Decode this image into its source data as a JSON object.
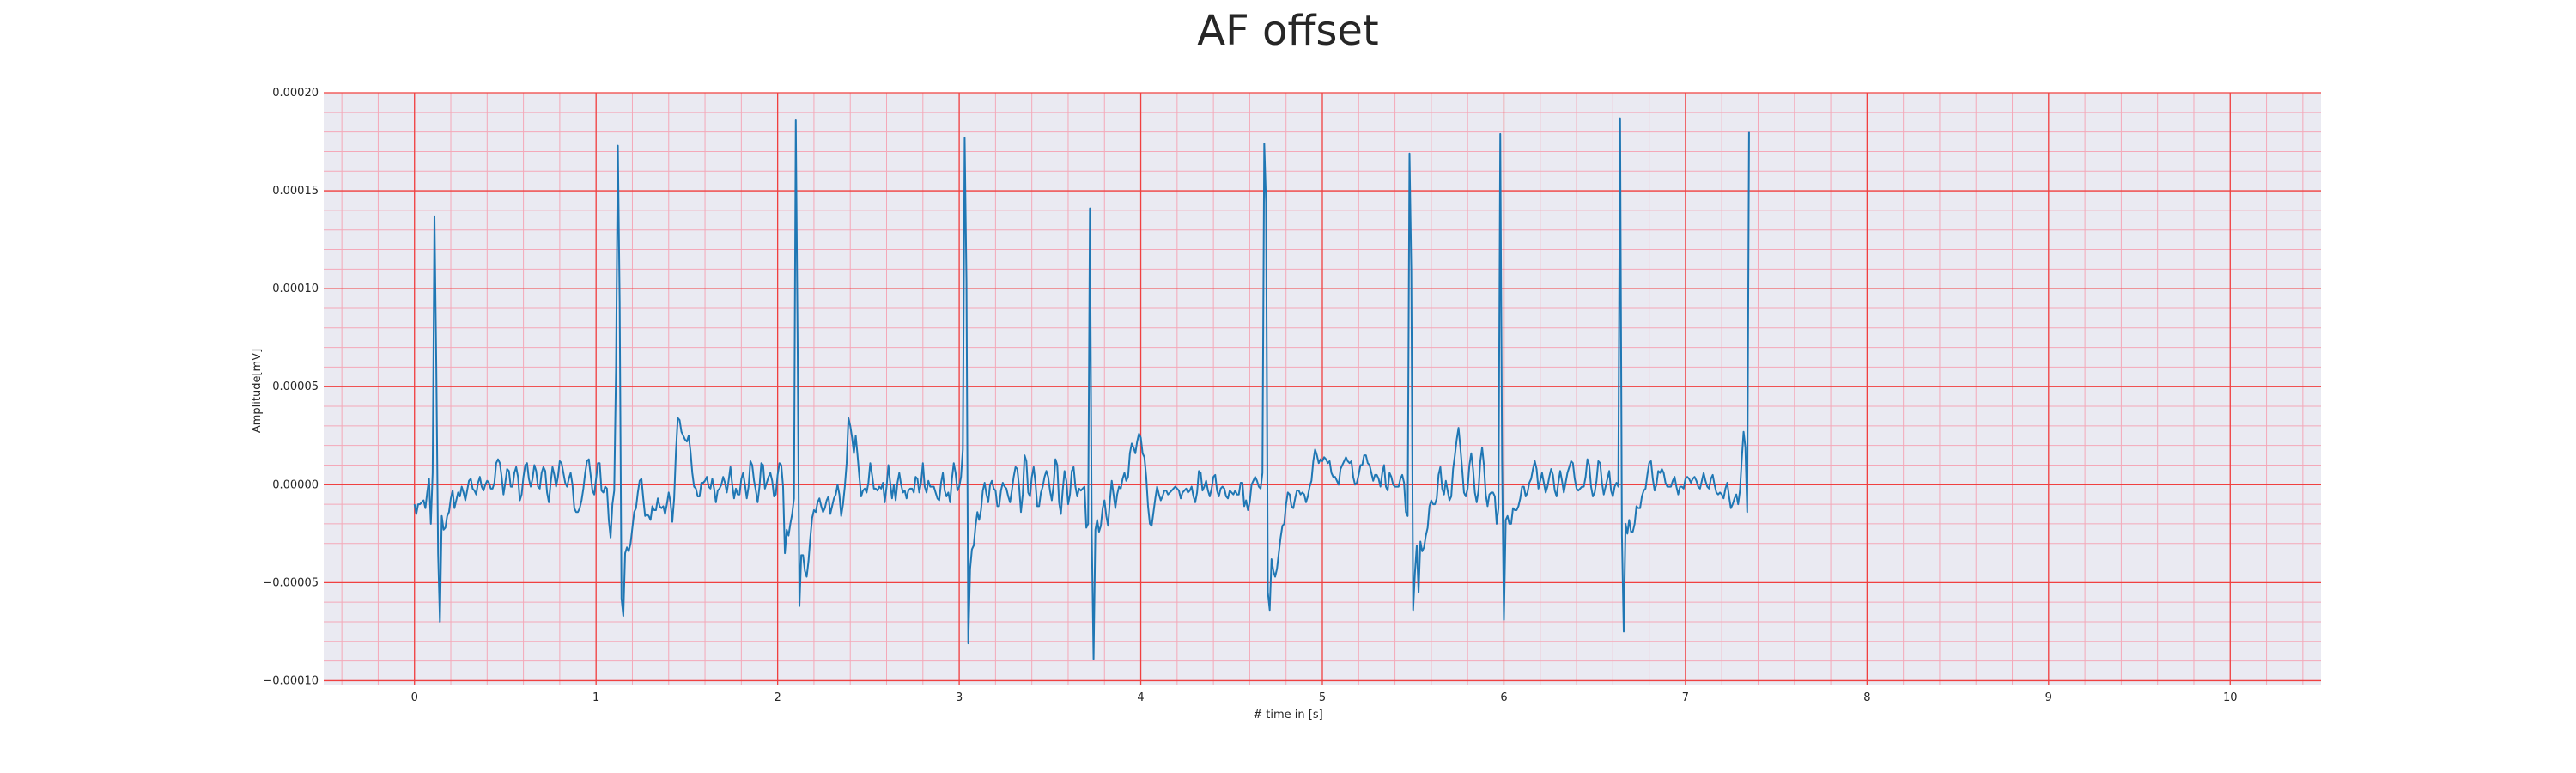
{
  "chart_data": {
    "type": "line",
    "title": "AF offset",
    "xlabel": "# time in [s]",
    "ylabel": "Amplitude[mV]",
    "xlim": [
      -0.5,
      10.5
    ],
    "ylim": [
      -0.000102,
      0.0002
    ],
    "x_ticks": [
      0,
      1,
      2,
      3,
      4,
      5,
      6,
      7,
      8,
      9,
      10
    ],
    "x_tick_labels": [
      "0",
      "1",
      "2",
      "3",
      "4",
      "5",
      "6",
      "7",
      "8",
      "9",
      "10"
    ],
    "y_ticks": [
      -0.0001,
      -5e-05,
      0,
      5e-05,
      0.0001,
      0.00015,
      0.0002
    ],
    "y_tick_labels": [
      "−0.00010",
      "−0.00005",
      "0.00000",
      "0.00005",
      "0.00010",
      "0.00015",
      "0.00020"
    ],
    "grid": true,
    "minor_grid": true,
    "colors": {
      "line": "#1f77b4",
      "plot_background": "#eaeaf2",
      "major_grid": "#f04040",
      "minor_grid": "#f4a8b8"
    },
    "series": [
      {
        "x_start": 0,
        "x_step": 0.01,
        "values": [
          -1e-05,
          -1.5e-05,
          -1e-05,
          -1e-05,
          -9e-06,
          -8e-06,
          -1.2e-05,
          -4e-06,
          3e-06,
          -2e-05,
          6e-06,
          0.000137,
          6.1e-05,
          -3.5e-05,
          -7e-05,
          -1.6e-05,
          -2.3e-05,
          -2.2e-05,
          -1.6e-05,
          -1.4e-05,
          -7e-06,
          -3e-06,
          -1.2e-05,
          -8e-06,
          -4e-06,
          -6e-06,
          -1e-06,
          -4e-06,
          -8e-06,
          -3e-06,
          2e-06,
          3e-06,
          -2e-06,
          -3e-06,
          -5e-06,
          1e-06,
          4e-06,
          -1e-06,
          -3e-06,
          0.0,
          2e-06,
          1e-06,
          -2e-06,
          -2e-06,
          1e-06,
          1.1e-05,
          1.3e-05,
          1.1e-05,
          4e-06,
          -5e-06,
          1e-06,
          8e-06,
          7e-06,
          -1e-06,
          -1e-06,
          6e-06,
          9e-06,
          4e-06,
          -8e-06,
          -5e-06,
          4e-06,
          1e-05,
          1.1e-05,
          3e-06,
          -1e-06,
          3e-06,
          1e-05,
          7e-06,
          -1e-06,
          -2e-06,
          6e-06,
          9e-06,
          7e-06,
          -4e-06,
          -9e-06,
          1e-06,
          9e-06,
          5e-06,
          -1e-06,
          4e-06,
          1.2e-05,
          1.1e-05,
          6e-06,
          1e-06,
          -1e-06,
          3e-06,
          6e-06,
          0.0,
          -1.2e-05,
          -1.4e-05,
          -1.4e-05,
          -1.2e-05,
          -8e-06,
          -2e-06,
          6e-06,
          1.2e-05,
          1.3e-05,
          5e-06,
          -3e-06,
          -5e-06,
          3e-06,
          1.1e-05,
          1.1e-05,
          -3e-06,
          -4e-06,
          -1e-06,
          -2e-06,
          -1.8e-05,
          -2.7e-05,
          -1e-05,
          -3e-06,
          5.9e-05,
          0.000173,
          9.3e-05,
          -5.8e-05,
          -6.7e-05,
          -3.5e-05,
          -3.2e-05,
          -3.4e-05,
          -3e-05,
          -2.2e-05,
          -1.4e-05,
          -1.2e-05,
          -4e-06,
          2e-06,
          3e-06,
          -7e-06,
          -1.6e-05,
          -1.5e-05,
          -1.6e-05,
          -1.8e-05,
          -1.1e-05,
          -1.3e-05,
          -1.3e-05,
          -7e-06,
          -1.1e-05,
          -1.2e-05,
          -1.1e-05,
          -1.5e-05,
          -1e-05,
          -4e-06,
          -9e-06,
          -1.9e-05,
          -7e-06,
          1.7e-05,
          3.4e-05,
          3.3e-05,
          2.7e-05,
          2.5e-05,
          2.3e-05,
          2.2e-05,
          2.5e-05,
          1.7e-05,
          6e-06,
          -1e-06,
          -2e-06,
          -6e-06,
          -6e-06,
          1e-06,
          1e-06,
          2e-06,
          4e-06,
          -1e-06,
          -2e-06,
          3e-06,
          -2e-06,
          -9e-06,
          -3e-06,
          -2e-06,
          0.0,
          4e-06,
          1e-06,
          -4e-06,
          2e-06,
          9e-06,
          0.0,
          -7e-06,
          -2e-06,
          -5e-06,
          -5e-06,
          3e-06,
          6e-06,
          0.0,
          -7e-06,
          -1e-06,
          1.2e-05,
          1e-05,
          2e-06,
          -3e-06,
          -9e-06,
          -1e-06,
          1.1e-05,
          1e-05,
          -2e-06,
          1e-06,
          4e-06,
          6e-06,
          2e-06,
          -6e-06,
          -5e-06,
          5e-06,
          1.1e-05,
          1e-05,
          -1e-06,
          -3.5e-05,
          -2.3e-05,
          -2.6e-05,
          -2e-05,
          -1.5e-05,
          -7e-06,
          0.000186,
          7.4e-05,
          -6.2e-05,
          -3.6e-05,
          -3.6e-05,
          -4.4e-05,
          -4.7e-05,
          -3.9e-05,
          -2.7e-05,
          -1.7e-05,
          -1.3e-05,
          -1.4e-05,
          -9e-06,
          -7e-06,
          -1.1e-05,
          -1.4e-05,
          -1.2e-05,
          -8e-06,
          -6e-06,
          -1.5e-05,
          -1.1e-05,
          -7e-06,
          -5e-06,
          0.0,
          -5e-06,
          -1.6e-05,
          -1e-05,
          -1e-06,
          1.1e-05,
          3.4e-05,
          3e-05,
          2.4e-05,
          1.6e-05,
          2.5e-05,
          1.5e-05,
          4e-06,
          -6e-06,
          -3e-06,
          -2e-06,
          -4e-06,
          1e-06,
          1.1e-05,
          5e-06,
          -2e-06,
          -2e-06,
          -3e-06,
          -1e-06,
          -2e-06,
          1e-06,
          -9e-06,
          -1e-06,
          1e-05,
          1e-06,
          -7e-06,
          0.0,
          -8e-06,
          1e-06,
          6e-06,
          0.0,
          -4e-06,
          -3e-06,
          -7e-06,
          -3e-06,
          -2e-06,
          -2e-06,
          -4e-06,
          4e-06,
          3e-06,
          -4e-06,
          1e-06,
          1.1e-05,
          -1e-06,
          -4e-06,
          2e-06,
          -1e-06,
          -1e-06,
          -1e-06,
          -4e-06,
          -7e-06,
          -8e-06,
          1e-06,
          6e-06,
          -3e-06,
          -6e-06,
          -4e-06,
          -9e-06,
          3e-06,
          1.1e-05,
          6e-06,
          -3e-06,
          -1e-06,
          4e-06,
          1.8e-05,
          0.000177,
          0.000104,
          -8.1e-05,
          -4.3e-05,
          -3.3e-05,
          -3.1e-05,
          -2.1e-05,
          -1.4e-05,
          -1.8e-05,
          -1.3e-05,
          -3e-06,
          1e-06,
          -5e-06,
          -9e-06,
          0.0,
          2e-06,
          -2e-06,
          -3e-06,
          -1.1e-05,
          -1.1e-05,
          -3e-06,
          1e-06,
          -1e-06,
          -2e-06,
          -6e-06,
          -9e-06,
          -3e-06,
          4e-06,
          9e-06,
          8e-06,
          -1e-06,
          -1.4e-05,
          -5e-06,
          1.5e-05,
          1.2e-05,
          -4e-06,
          -6e-06,
          4e-06,
          9e-06,
          1e-06,
          -1.1e-05,
          -1.1e-05,
          -4e-06,
          -1e-06,
          4e-06,
          7e-06,
          4e-06,
          -3e-06,
          -8e-06,
          0.0,
          1.3e-05,
          1e-05,
          -9e-06,
          -1.5e-05,
          -3e-06,
          7e-06,
          2e-06,
          -1e-05,
          -5e-06,
          7e-06,
          9e-06,
          -1e-06,
          -6e-06,
          -2e-06,
          -3e-06,
          -2e-06,
          -1e-06,
          -2.2e-05,
          -2e-05,
          0.000141,
          -2.5e-05,
          -8.9e-05,
          -2.3e-05,
          -1.8e-05,
          -2.4e-05,
          -2.1e-05,
          -1.2e-05,
          -8e-06,
          -1.6e-05,
          -2.1e-05,
          -8e-06,
          2e-06,
          -5e-06,
          -1.2e-05,
          -5e-06,
          -1e-06,
          -2e-06,
          3e-06,
          6e-06,
          2e-06,
          4e-06,
          1.6e-05,
          2.1e-05,
          1.9e-05,
          1.6e-05,
          2.2e-05,
          2.6e-05,
          2.4e-05,
          1.6e-05,
          1.4e-05,
          4e-06,
          -1.1e-05,
          -2e-05,
          -2.1e-05,
          -1.4e-05,
          -7e-06,
          -1e-06,
          -5e-06,
          -8e-06,
          -6e-06,
          -3e-06,
          -3e-06,
          -5e-06,
          -4e-06,
          -3e-06,
          -2e-06,
          -1e-06,
          -2e-06,
          -3e-06,
          -7e-06,
          -4e-06,
          -3e-06,
          -2e-06,
          -4e-06,
          -3e-06,
          -1e-06,
          -6e-06,
          -9e-06,
          -4e-06,
          7e-06,
          6e-06,
          -3e-06,
          -1e-06,
          2e-06,
          -3e-06,
          -6e-06,
          -2e-06,
          4e-06,
          5e-06,
          -3e-06,
          -6e-06,
          -2e-06,
          -1e-06,
          -2e-06,
          -6e-06,
          -7e-06,
          -3e-06,
          -4e-06,
          -5e-06,
          -3e-06,
          -5e-06,
          -5e-06,
          1e-06,
          1e-06,
          -1.1e-05,
          -8e-06,
          -1.3e-05,
          -9e-06,
          0.0,
          2e-06,
          4e-06,
          2e-06,
          -1e-06,
          -2e-06,
          6e-06,
          0.000174,
          0.000144,
          -5.5e-05,
          -6.4e-05,
          -3.8e-05,
          -4.4e-05,
          -4.7e-05,
          -4.3e-05,
          -3.5e-05,
          -2.7e-05,
          -2.1e-05,
          -2e-05,
          -1e-05,
          -4e-06,
          -5e-06,
          -1.1e-05,
          -1.2e-05,
          -7e-06,
          -3e-06,
          -3e-06,
          -5e-06,
          -4e-06,
          -5e-06,
          -9e-06,
          -6e-06,
          -1e-06,
          2e-06,
          1.2e-05,
          1.8e-05,
          1.5e-05,
          1.1e-05,
          1.3e-05,
          1.2e-05,
          1.4e-05,
          1.3e-05,
          1.1e-05,
          1.2e-05,
          6e-06,
          4e-06,
          4e-06,
          2e-06,
          0.0,
          8e-06,
          1e-05,
          1.2e-05,
          1.4e-05,
          1.2e-05,
          1.1e-05,
          1.2e-05,
          4e-06,
          0.0,
          1e-06,
          5e-06,
          1e-05,
          1e-05,
          1.5e-05,
          1.5e-05,
          1.1e-05,
          1e-05,
          6e-06,
          2e-06,
          5e-06,
          5e-06,
          3e-06,
          -1e-06,
          6e-06,
          1e-05,
          -1e-06,
          -3e-06,
          6e-06,
          4e-06,
          0.0,
          -1e-06,
          -1e-06,
          -1e-06,
          3e-06,
          5e-06,
          1e-06,
          -1.4e-05,
          -1.6e-05,
          0.000169,
          0.000109,
          -6.4e-05,
          -4.5e-05,
          -3.1e-05,
          -5.5e-05,
          -2.9e-05,
          -3.4e-05,
          -3.2e-05,
          -2.6e-05,
          -2.2e-05,
          -1.1e-05,
          -8e-06,
          -1e-05,
          -1e-05,
          -7e-06,
          5e-06,
          9e-06,
          -2e-06,
          -5e-06,
          2e-06,
          -3e-06,
          -8e-06,
          -6e-06,
          8e-06,
          1.5e-05,
          2.3e-05,
          2.9e-05,
          1.9e-05,
          8e-06,
          -4e-06,
          -6e-06,
          -2e-06,
          1e-05,
          1.6e-05,
          8e-06,
          -4e-06,
          -9e-06,
          -3e-06,
          1.2e-05,
          1.9e-05,
          1e-05,
          -5e-06,
          -1.1e-05,
          -5e-06,
          -4e-06,
          -4e-06,
          -6e-06,
          -2e-05,
          -1.2e-05,
          0.000179,
          1.2e-05,
          -6.9e-05,
          -1.8e-05,
          -1.6e-05,
          -2e-05,
          -2e-05,
          -1.2e-05,
          -1.3e-05,
          -1.3e-05,
          -1.1e-05,
          -7e-06,
          -1e-06,
          -1e-06,
          -6e-06,
          -4e-06,
          1e-06,
          3e-06,
          8e-06,
          1.2e-05,
          8e-06,
          -2e-06,
          2e-06,
          6e-06,
          1e-06,
          -4e-06,
          -1e-06,
          4e-06,
          8e-06,
          5e-06,
          -3e-06,
          -6e-06,
          1e-06,
          7e-06,
          2e-06,
          -4e-06,
          1e-06,
          6e-06,
          9e-06,
          1.2e-05,
          1.1e-05,
          3e-06,
          -2e-06,
          -3e-06,
          -2e-06,
          -1e-06,
          -1e-06,
          4e-06,
          1.3e-05,
          1e-05,
          -1e-06,
          -6e-06,
          -4e-06,
          2e-06,
          1.2e-05,
          1.1e-05,
          1e-06,
          -5e-06,
          -1e-06,
          3e-06,
          7e-06,
          -3e-06,
          -6e-06,
          -1e-06,
          1e-06,
          -1e-06,
          0.000187,
          -2.6e-05,
          -7.5e-05,
          -2e-05,
          -2.5e-05,
          -1.8e-05,
          -2.4e-05,
          -2.4e-05,
          -2e-05,
          -1.1e-05,
          -1.2e-05,
          -1.2e-05,
          -6e-06,
          -3e-06,
          -2e-06,
          5e-06,
          1.1e-05,
          1.2e-05,
          3e-06,
          -3e-06,
          0.0,
          7e-06,
          6e-06,
          8e-06,
          6e-06,
          1e-06,
          -1e-06,
          -1e-06,
          -1e-06,
          2e-06,
          4e-06,
          -1e-06,
          -5e-06,
          -1e-06,
          -1e-06,
          -2e-06,
          3e-06,
          4e-06,
          3e-06,
          1e-06,
          3e-06,
          4e-06,
          2e-06,
          -1e-06,
          -2e-06,
          2e-06,
          6e-06,
          2e-06,
          -1e-06,
          -2e-06,
          3e-06,
          5e-06,
          0.0,
          -4e-06,
          -5e-06,
          -4e-06,
          -5e-06,
          -7e-06,
          -2e-06,
          1e-06,
          -6e-06,
          -1.2e-05,
          -1e-05,
          -7e-06,
          -5e-06,
          -1e-05,
          -3e-06,
          1.3e-05,
          2.7e-05,
          1.9e-05,
          -1.4e-05,
          0.00018
        ]
      }
    ]
  }
}
